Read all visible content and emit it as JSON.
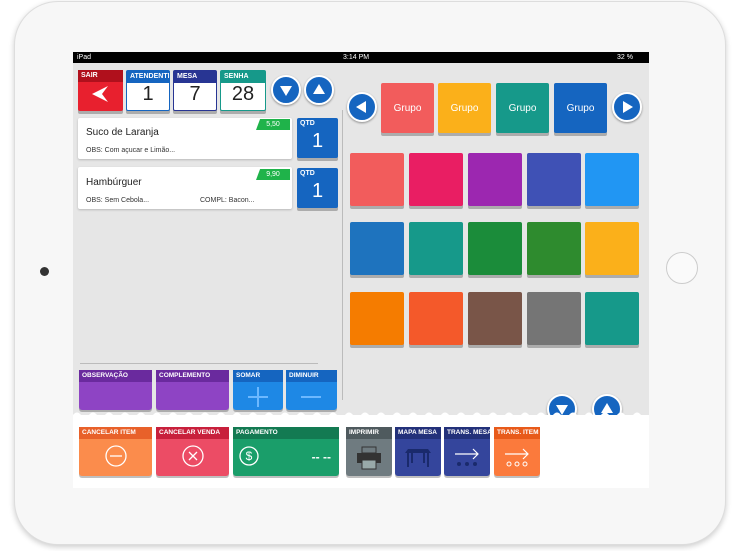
{
  "status_bar": {
    "device": "iPad",
    "time": "3:14 PM",
    "battery": "32 %"
  },
  "header": {
    "exit": "SAIR",
    "attendant": {
      "label": "ATENDENTE",
      "value": "1"
    },
    "table": {
      "label": "MESA",
      "value": "7"
    },
    "ticket": {
      "label": "SENHA",
      "value": "28"
    }
  },
  "groups": [
    "Grupo",
    "Grupo",
    "Grupo",
    "Grupo"
  ],
  "items": [
    {
      "name": "Suco de Laranja",
      "price": "5,50",
      "obs": "OBS: Com açucar e Limão...",
      "qty_label": "QTD",
      "qty": "1"
    },
    {
      "name": "Hambúrguer",
      "price": "9,90",
      "obs": "OBS: Sem Cebola...",
      "compl": "COMPL: Bacon...",
      "qty_label": "QTD",
      "qty": "1"
    }
  ],
  "actions": [
    "OBSERVAÇÃO",
    "COMPLEMENTO",
    "SOMAR",
    "DIMINUIR"
  ],
  "footer": {
    "cancel_item": "CANCELAR ITEM",
    "cancel_sale": "CANCELAR VENDA",
    "payment": "PAGAMENTO",
    "payment_value": "-- --",
    "print": "IMPRIMIR",
    "table_map": "MAPA MESA",
    "transfer_table": "TRANS. MESA",
    "transfer_item": "TRANS. ITEM"
  }
}
